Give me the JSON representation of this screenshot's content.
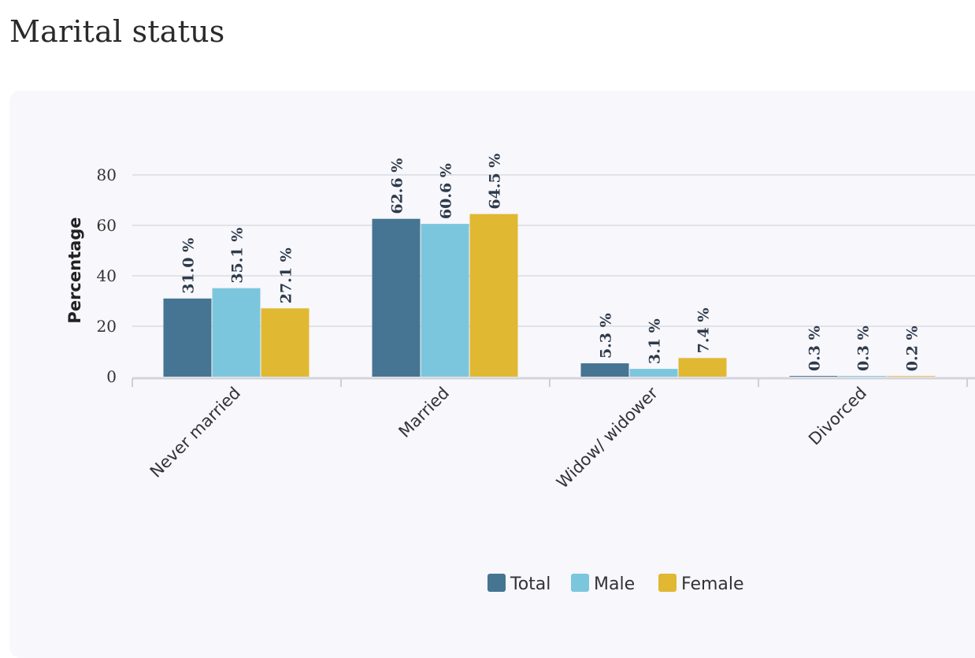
{
  "page": {
    "title": "Marital status"
  },
  "chart_data": {
    "type": "bar",
    "title": "Marital status",
    "xlabel": "",
    "ylabel": "Percentage",
    "ylim": [
      0,
      80
    ],
    "yticks": [
      0,
      20,
      40,
      60,
      80
    ],
    "categories": [
      "Never married",
      "Married",
      "Widow/ widower",
      "Divorced"
    ],
    "series": [
      {
        "name": "Total",
        "color": "#457593",
        "values": [
          31.0,
          62.6,
          5.3,
          0.3
        ],
        "labels": [
          "31.0 %",
          "62.6 %",
          "5.3 %",
          "0.3 %"
        ]
      },
      {
        "name": "Male",
        "color": "#7cc6dd",
        "values": [
          35.1,
          60.6,
          3.1,
          0.3
        ],
        "labels": [
          "35.1 %",
          "60.6 %",
          "3.1 %",
          "0.3 %"
        ]
      },
      {
        "name": "Female",
        "color": "#e0b832",
        "values": [
          27.1,
          64.5,
          7.4,
          0.2
        ],
        "labels": [
          "27.1 %",
          "64.5 %",
          "7.4 %",
          "0.2 %"
        ]
      }
    ],
    "legend_position": "bottom-center",
    "grid": true
  }
}
